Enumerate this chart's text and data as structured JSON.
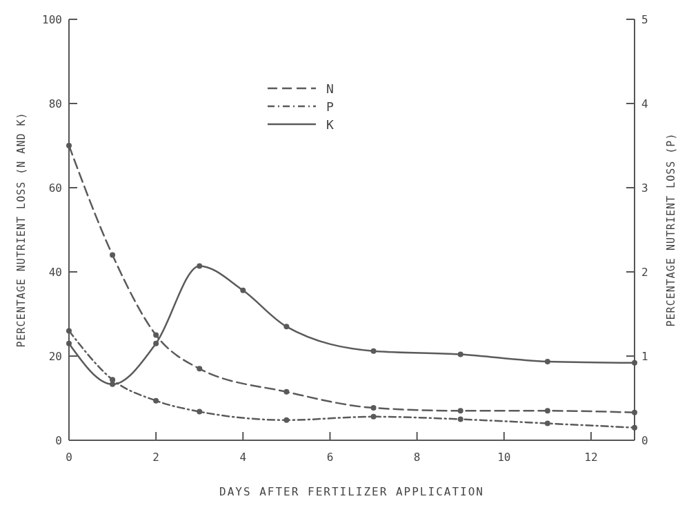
{
  "chart_data": {
    "type": "line",
    "xlabel": "DAYS AFTER FERTILIZER APPLICATION",
    "ylabel": "PERCENTAGE NUTRIENT LOSS (N AND K)",
    "y2label": "PERCENTAGE NUTRIENT LOSS (P)",
    "x": [
      0,
      1,
      2,
      3,
      5,
      7,
      9,
      11,
      13
    ],
    "series": [
      {
        "name": "N",
        "color": "#5a5a5a",
        "line_style": "dashed",
        "values": [
          70,
          44,
          25,
          17,
          11.5,
          7.7,
          7,
          7,
          6.6
        ]
      },
      {
        "name": "P",
        "color": "#5a5a5a",
        "line_style": "dotted",
        "axis": "y2",
        "values": [
          1.3,
          0.72,
          0.47,
          0.34,
          0.24,
          0.28,
          0.25,
          0.2,
          0.15
        ]
      },
      {
        "name": "K",
        "color": "#5a5a5a",
        "line_style": "solid",
        "x": [
          0,
          1,
          2,
          3,
          4,
          5,
          7,
          9,
          11,
          13
        ],
        "values": [
          23,
          13.3,
          23,
          41.4,
          35.6,
          27,
          21.2,
          20.4,
          18.7,
          18.4
        ]
      }
    ],
    "xlim": [
      0,
      13
    ],
    "xticks": [
      0,
      2,
      4,
      6,
      8,
      10,
      12
    ],
    "ylim": [
      0,
      100
    ],
    "yticks": [
      0,
      20,
      40,
      60,
      80,
      100
    ],
    "y2lim": [
      0,
      5
    ],
    "y2ticks": [
      0,
      1,
      2,
      3,
      4,
      5
    ],
    "marker": "circle",
    "legend": "top",
    "grid": false
  }
}
